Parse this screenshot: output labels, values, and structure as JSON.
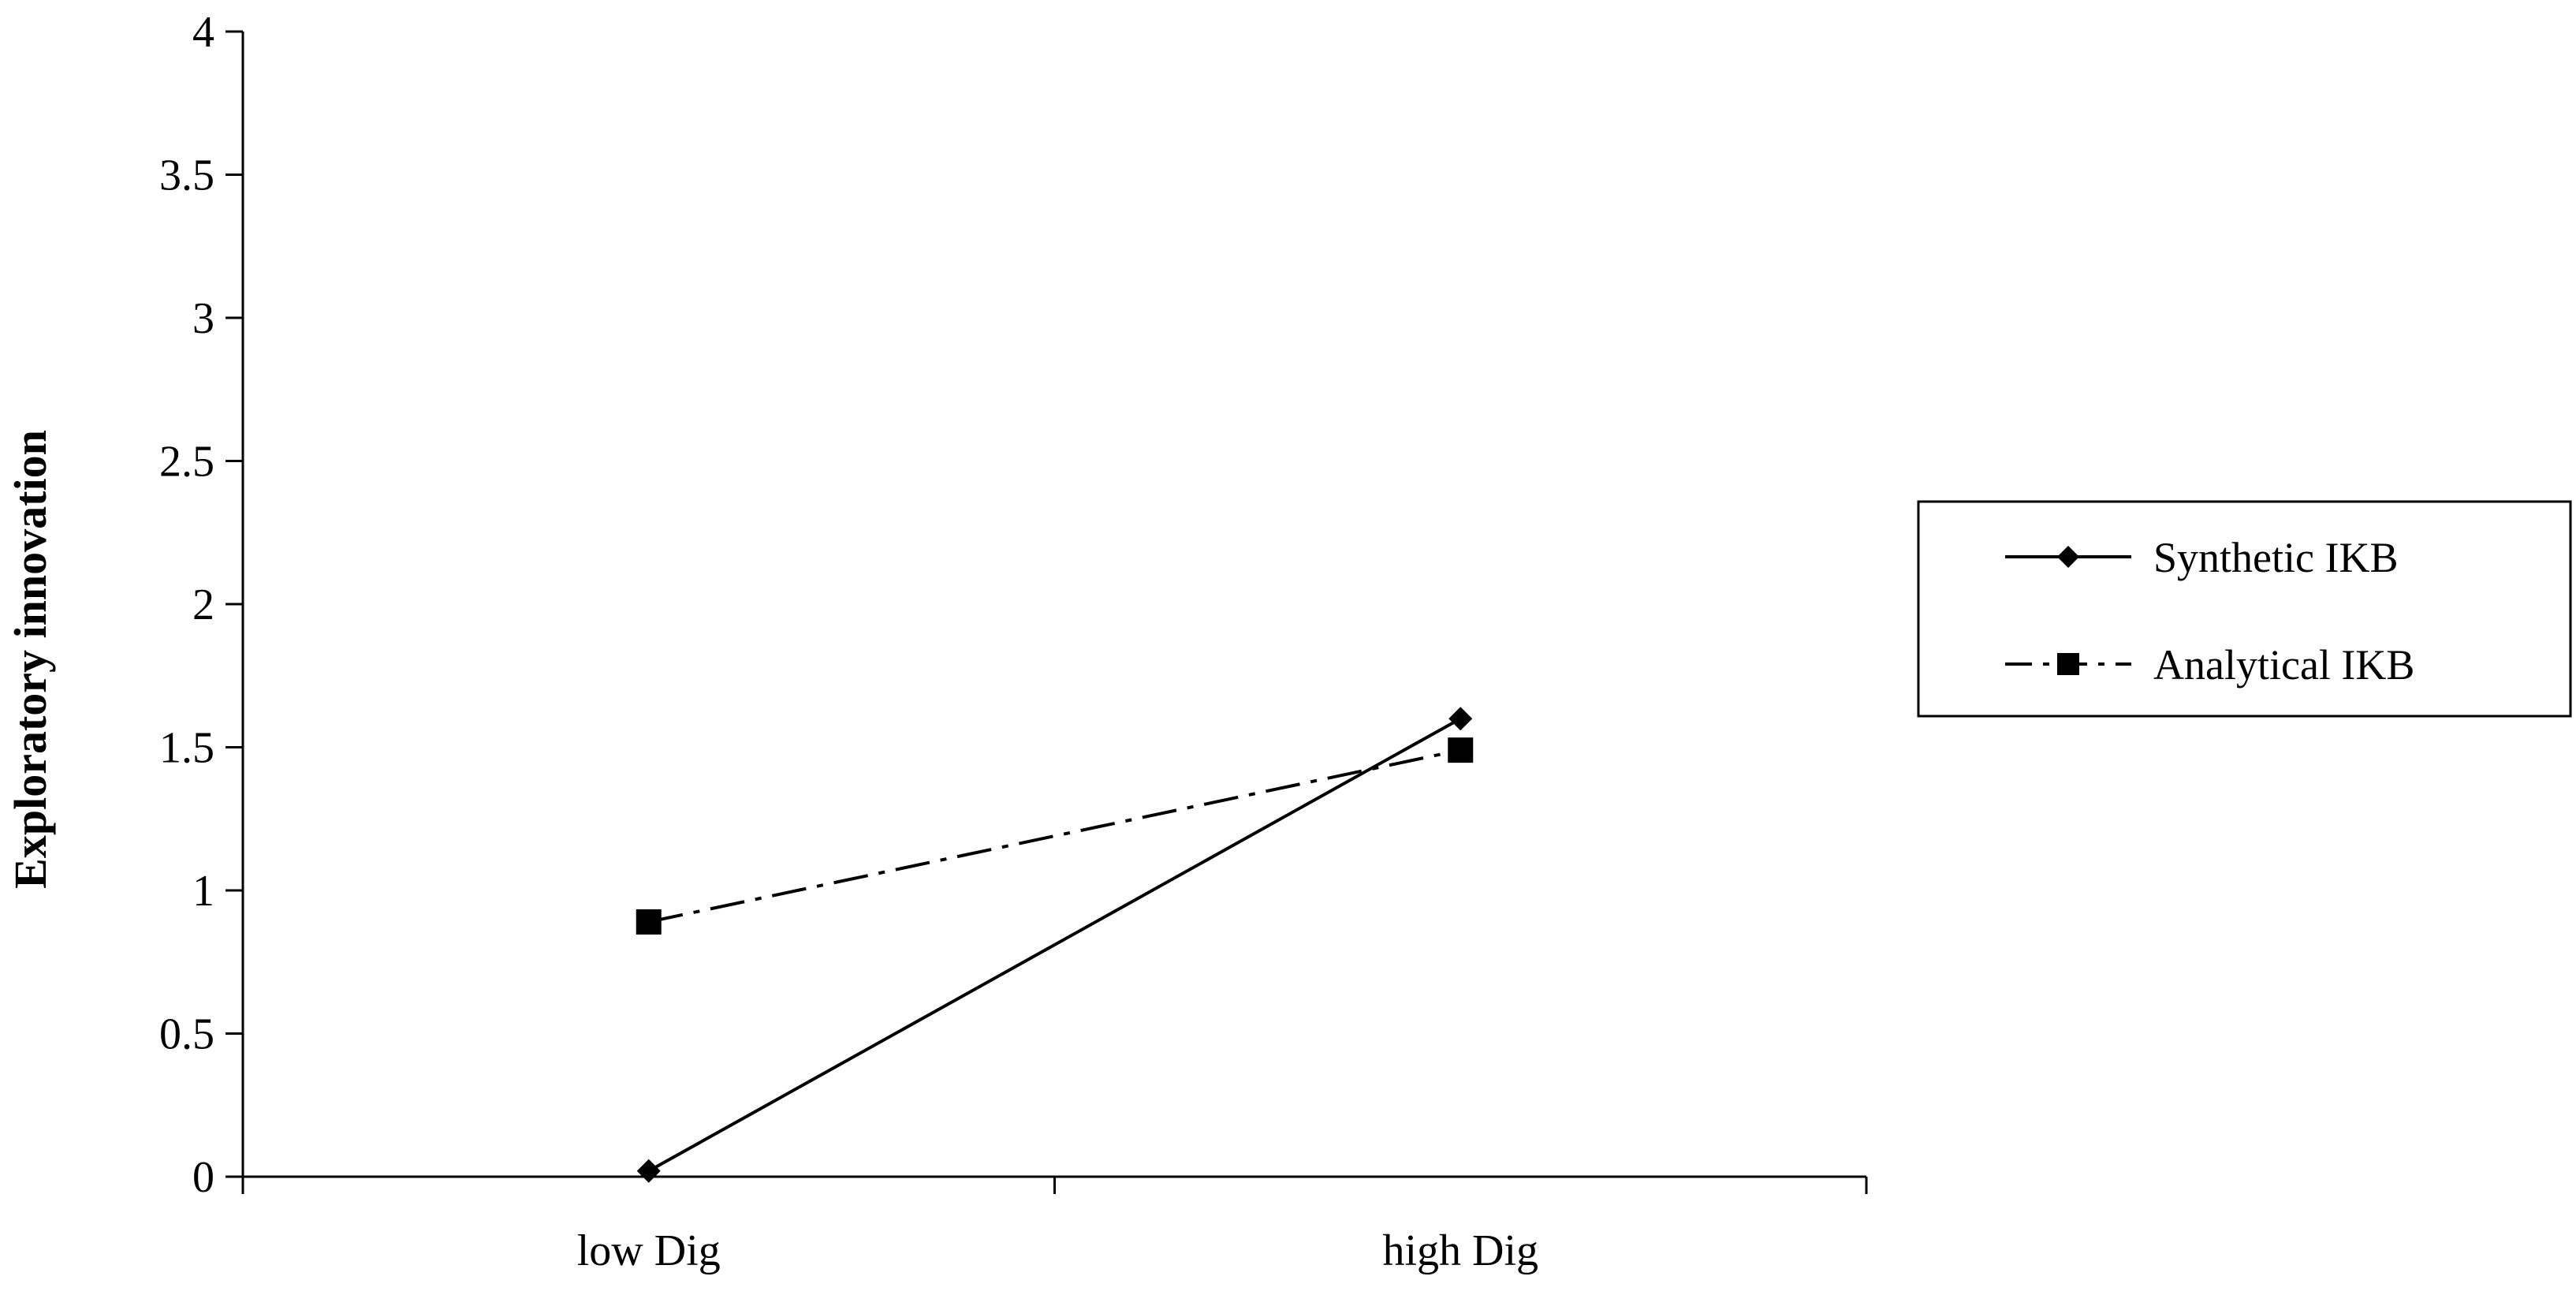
{
  "chart_data": {
    "type": "line",
    "title": "",
    "xlabel": "",
    "ylabel": "Exploratory innovation",
    "categories": [
      "low Dig",
      "high Dig"
    ],
    "ylim": [
      0,
      4
    ],
    "yticks": [
      "0",
      "0.5",
      "1",
      "1.5",
      "2",
      "2.5",
      "3",
      "3.5",
      "4"
    ],
    "grid": false,
    "legend_position": "right",
    "series": [
      {
        "name": "Synthetic IKB",
        "values": [
          0.02,
          1.6
        ],
        "marker": "diamond",
        "line_style": "solid",
        "color": "#000000"
      },
      {
        "name": "Analytical IKB",
        "values": [
          0.89,
          1.49
        ],
        "marker": "square",
        "line_style": "dash-dot",
        "color": "#000000"
      }
    ]
  }
}
